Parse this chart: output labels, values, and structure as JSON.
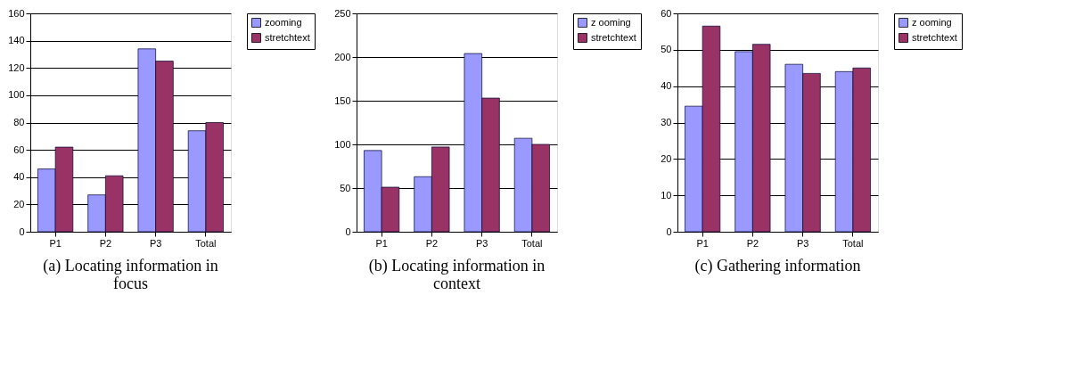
{
  "chart_data": [
    {
      "type": "bar",
      "title": "(a) Locating information in focus",
      "categories": [
        "P1",
        "P2",
        "P3",
        "Total"
      ],
      "ylim": [
        0,
        160
      ],
      "yticks": [
        0,
        20,
        40,
        60,
        80,
        100,
        120,
        140,
        160
      ],
      "grid": "y",
      "legend": "right",
      "series": [
        {
          "name": "zooming",
          "color": "#9999ff",
          "values": [
            46,
            27,
            134,
            74
          ]
        },
        {
          "name": "stretchtext",
          "color": "#993366",
          "values": [
            62,
            41,
            125,
            80
          ]
        }
      ]
    },
    {
      "type": "bar",
      "title": "(b) Locating information in context",
      "categories": [
        "P1",
        "P2",
        "P3",
        "Total"
      ],
      "ylim": [
        0,
        250
      ],
      "yticks": [
        0,
        50,
        100,
        150,
        200,
        250
      ],
      "grid": "y",
      "legend": "right",
      "series": [
        {
          "name": "z ooming",
          "color": "#9999ff",
          "values": [
            93,
            63,
            204,
            107
          ]
        },
        {
          "name": "stretchtext",
          "color": "#993366",
          "values": [
            51,
            97,
            153,
            100
          ]
        }
      ]
    },
    {
      "type": "bar",
      "title": "(c) Gathering information",
      "categories": [
        "P1",
        "P2",
        "P3",
        "Total"
      ],
      "ylim": [
        0,
        60
      ],
      "yticks": [
        0,
        10,
        20,
        30,
        40,
        50,
        60
      ],
      "grid": "y",
      "legend": "right",
      "series": [
        {
          "name": "z ooming",
          "color": "#9999ff",
          "values": [
            34.5,
            49.5,
            46,
            44
          ]
        },
        {
          "name": "stretchtext",
          "color": "#993366",
          "values": [
            56.5,
            51.5,
            43.5,
            45
          ]
        }
      ]
    }
  ]
}
